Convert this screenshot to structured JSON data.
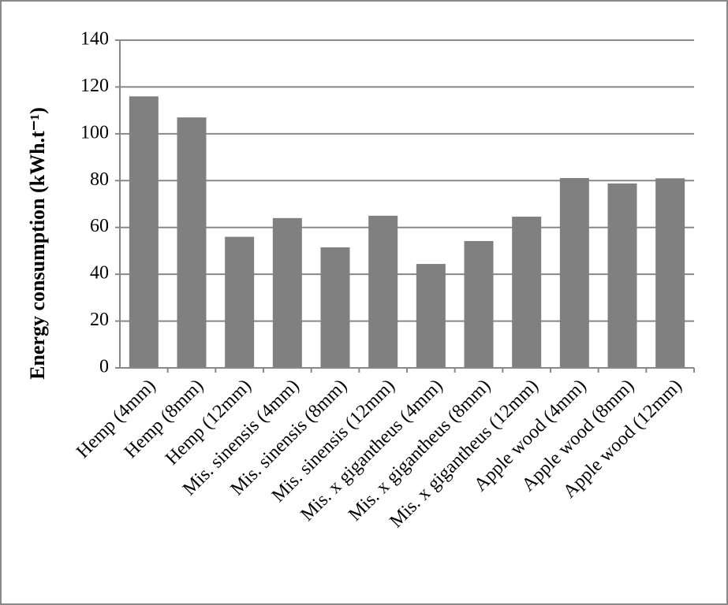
{
  "chart_data": {
    "type": "bar",
    "y_label": "Energy consumption (kWh.t⁻¹)",
    "categories": [
      "Hemp (4mm)",
      "Hemp (8mm)",
      "Hemp (12mm)",
      "Mis. sinensis (4mm)",
      "Mis. sinensis (8mm)",
      "Mis. sinensis (12mm)",
      "Mis. x gigantheus (4mm)",
      "Mis. x gigantheus (8mm)",
      "Mis. x gigantheus (12mm)",
      "Apple wood (4mm)",
      "Apple wood (8mm)",
      "Apple wood (12mm)"
    ],
    "values": [
      116,
      107,
      56,
      64,
      51.5,
      65,
      44.4,
      54.2,
      64.6,
      81.1,
      78.8,
      81
    ],
    "color": "#808080",
    "ylim": [
      0,
      140
    ],
    "yticks": [
      0,
      20,
      40,
      60,
      80,
      100,
      120,
      140
    ],
    "grid": true
  }
}
